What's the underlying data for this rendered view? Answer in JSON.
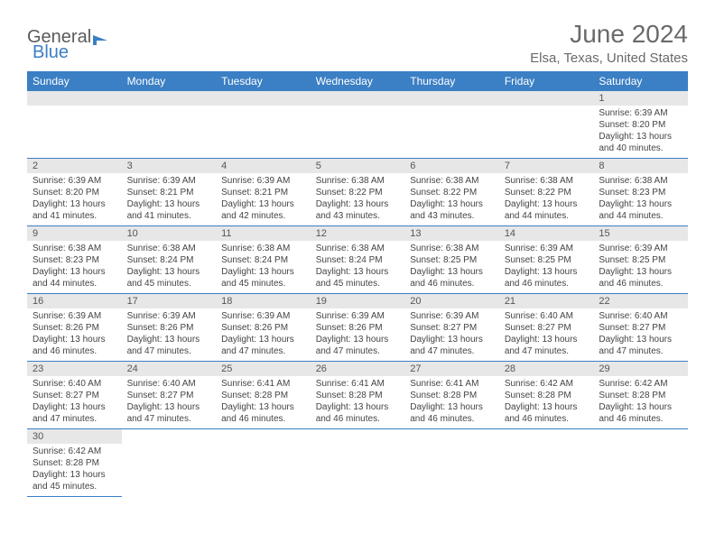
{
  "logo": {
    "part1": "General",
    "part2": "Blue"
  },
  "title": "June 2024",
  "location": "Elsa, Texas, United States",
  "colors": {
    "headerBg": "#3b7fc4",
    "headerText": "#ffffff",
    "dayHeaderBg": "#e7e7e7",
    "borderColor": "#3b7fc4",
    "titleColor": "#6a6a6a"
  },
  "dayNames": [
    "Sunday",
    "Monday",
    "Tuesday",
    "Wednesday",
    "Thursday",
    "Friday",
    "Saturday"
  ],
  "weeks": [
    [
      null,
      null,
      null,
      null,
      null,
      null,
      {
        "n": "1",
        "sunrise": "6:39 AM",
        "sunset": "8:20 PM",
        "daylight": "13 hours and 40 minutes."
      }
    ],
    [
      {
        "n": "2",
        "sunrise": "6:39 AM",
        "sunset": "8:20 PM",
        "daylight": "13 hours and 41 minutes."
      },
      {
        "n": "3",
        "sunrise": "6:39 AM",
        "sunset": "8:21 PM",
        "daylight": "13 hours and 41 minutes."
      },
      {
        "n": "4",
        "sunrise": "6:39 AM",
        "sunset": "8:21 PM",
        "daylight": "13 hours and 42 minutes."
      },
      {
        "n": "5",
        "sunrise": "6:38 AM",
        "sunset": "8:22 PM",
        "daylight": "13 hours and 43 minutes."
      },
      {
        "n": "6",
        "sunrise": "6:38 AM",
        "sunset": "8:22 PM",
        "daylight": "13 hours and 43 minutes."
      },
      {
        "n": "7",
        "sunrise": "6:38 AM",
        "sunset": "8:22 PM",
        "daylight": "13 hours and 44 minutes."
      },
      {
        "n": "8",
        "sunrise": "6:38 AM",
        "sunset": "8:23 PM",
        "daylight": "13 hours and 44 minutes."
      }
    ],
    [
      {
        "n": "9",
        "sunrise": "6:38 AM",
        "sunset": "8:23 PM",
        "daylight": "13 hours and 44 minutes."
      },
      {
        "n": "10",
        "sunrise": "6:38 AM",
        "sunset": "8:24 PM",
        "daylight": "13 hours and 45 minutes."
      },
      {
        "n": "11",
        "sunrise": "6:38 AM",
        "sunset": "8:24 PM",
        "daylight": "13 hours and 45 minutes."
      },
      {
        "n": "12",
        "sunrise": "6:38 AM",
        "sunset": "8:24 PM",
        "daylight": "13 hours and 45 minutes."
      },
      {
        "n": "13",
        "sunrise": "6:38 AM",
        "sunset": "8:25 PM",
        "daylight": "13 hours and 46 minutes."
      },
      {
        "n": "14",
        "sunrise": "6:39 AM",
        "sunset": "8:25 PM",
        "daylight": "13 hours and 46 minutes."
      },
      {
        "n": "15",
        "sunrise": "6:39 AM",
        "sunset": "8:25 PM",
        "daylight": "13 hours and 46 minutes."
      }
    ],
    [
      {
        "n": "16",
        "sunrise": "6:39 AM",
        "sunset": "8:26 PM",
        "daylight": "13 hours and 46 minutes."
      },
      {
        "n": "17",
        "sunrise": "6:39 AM",
        "sunset": "8:26 PM",
        "daylight": "13 hours and 47 minutes."
      },
      {
        "n": "18",
        "sunrise": "6:39 AM",
        "sunset": "8:26 PM",
        "daylight": "13 hours and 47 minutes."
      },
      {
        "n": "19",
        "sunrise": "6:39 AM",
        "sunset": "8:26 PM",
        "daylight": "13 hours and 47 minutes."
      },
      {
        "n": "20",
        "sunrise": "6:39 AM",
        "sunset": "8:27 PM",
        "daylight": "13 hours and 47 minutes."
      },
      {
        "n": "21",
        "sunrise": "6:40 AM",
        "sunset": "8:27 PM",
        "daylight": "13 hours and 47 minutes."
      },
      {
        "n": "22",
        "sunrise": "6:40 AM",
        "sunset": "8:27 PM",
        "daylight": "13 hours and 47 minutes."
      }
    ],
    [
      {
        "n": "23",
        "sunrise": "6:40 AM",
        "sunset": "8:27 PM",
        "daylight": "13 hours and 47 minutes."
      },
      {
        "n": "24",
        "sunrise": "6:40 AM",
        "sunset": "8:27 PM",
        "daylight": "13 hours and 47 minutes."
      },
      {
        "n": "25",
        "sunrise": "6:41 AM",
        "sunset": "8:28 PM",
        "daylight": "13 hours and 46 minutes."
      },
      {
        "n": "26",
        "sunrise": "6:41 AM",
        "sunset": "8:28 PM",
        "daylight": "13 hours and 46 minutes."
      },
      {
        "n": "27",
        "sunrise": "6:41 AM",
        "sunset": "8:28 PM",
        "daylight": "13 hours and 46 minutes."
      },
      {
        "n": "28",
        "sunrise": "6:42 AM",
        "sunset": "8:28 PM",
        "daylight": "13 hours and 46 minutes."
      },
      {
        "n": "29",
        "sunrise": "6:42 AM",
        "sunset": "8:28 PM",
        "daylight": "13 hours and 46 minutes."
      }
    ],
    [
      {
        "n": "30",
        "sunrise": "6:42 AM",
        "sunset": "8:28 PM",
        "daylight": "13 hours and 45 minutes."
      },
      null,
      null,
      null,
      null,
      null,
      null
    ]
  ],
  "labels": {
    "sunrise": "Sunrise: ",
    "sunset": "Sunset: ",
    "daylight": "Daylight: "
  }
}
